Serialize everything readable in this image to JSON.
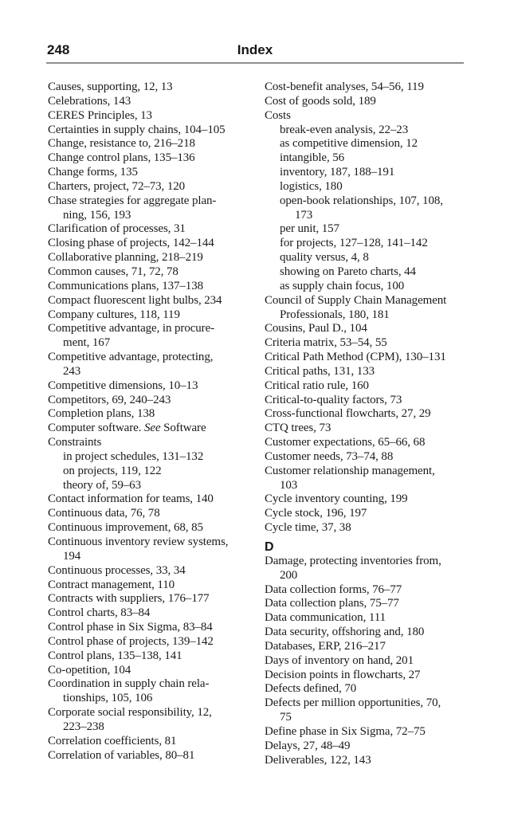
{
  "page": {
    "number": "248",
    "title": "Index"
  },
  "index": {
    "left_column": [
      {
        "t": "Causes, supporting, 12, 13"
      },
      {
        "t": "Celebrations, 143"
      },
      {
        "t": "CERES Principles, 13"
      },
      {
        "t": "Certainties in supply chains, 104–105"
      },
      {
        "t": "Change, resistance to, 216–218"
      },
      {
        "t": "Change control plans, 135–136"
      },
      {
        "t": "Change forms, 135"
      },
      {
        "t": "Charters, project, 72–73, 120"
      },
      {
        "t": "Chase strategies for aggregate plan-"
      },
      {
        "t": "ning, 156, 193",
        "i": 1
      },
      {
        "t": "Clarification of processes, 31"
      },
      {
        "t": "Closing phase of projects, 142–144"
      },
      {
        "t": "Collaborative planning, 218–219"
      },
      {
        "t": "Common causes, 71, 72, 78"
      },
      {
        "t": "Communications plans, 137–138"
      },
      {
        "t": "Compact fluorescent light bulbs, 234"
      },
      {
        "t": "Company cultures, 118, 119"
      },
      {
        "t": "Competitive advantage, in procure-"
      },
      {
        "t": "ment, 167",
        "i": 1
      },
      {
        "t": "Competitive advantage, protecting,"
      },
      {
        "t": "243",
        "i": 1
      },
      {
        "t": "Competitive dimensions, 10–13"
      },
      {
        "t": "Competitors, 69, 240–243"
      },
      {
        "t": "Completion plans, 138"
      },
      {
        "pre": "Computer software. ",
        "it": "See",
        "post": " Software"
      },
      {
        "t": "Constraints"
      },
      {
        "t": "in project schedules, 131–132",
        "i": 1
      },
      {
        "t": "on projects, 119, 122",
        "i": 1
      },
      {
        "t": "theory of, 59–63",
        "i": 1
      },
      {
        "t": "Contact information for teams, 140"
      },
      {
        "t": "Continuous data, 76, 78"
      },
      {
        "t": "Continuous improvement, 68, 85"
      },
      {
        "t": "Continuous inventory review systems,"
      },
      {
        "t": "194",
        "i": 1
      },
      {
        "t": "Continuous processes, 33, 34"
      },
      {
        "t": "Contract management, 110"
      },
      {
        "t": "Contracts with suppliers, 176–177"
      },
      {
        "t": "Control charts, 83–84"
      },
      {
        "t": "Control phase in Six Sigma, 83–84"
      },
      {
        "t": "Control phase of projects, 139–142"
      },
      {
        "t": "Control plans, 135–138, 141"
      },
      {
        "t": "Co-opetition, 104"
      },
      {
        "t": "Coordination in supply chain rela-"
      },
      {
        "t": "tionships, 105, 106",
        "i": 1
      },
      {
        "t": "Corporate social responsibility, 12,"
      },
      {
        "t": "223–238",
        "i": 1
      },
      {
        "t": "Correlation coefficients, 81"
      },
      {
        "t": "Correlation of variables, 80–81"
      }
    ],
    "right_column": [
      {
        "t": "Cost-benefit analyses, 54–56, 119"
      },
      {
        "t": "Cost of goods sold, 189"
      },
      {
        "t": "Costs"
      },
      {
        "t": "break-even analysis, 22–23",
        "i": 1
      },
      {
        "t": "as competitive dimension, 12",
        "i": 1
      },
      {
        "t": "intangible, 56",
        "i": 1
      },
      {
        "t": "inventory, 187, 188–191",
        "i": 1
      },
      {
        "t": "logistics, 180",
        "i": 1
      },
      {
        "t": "open-book relationships, 107, 108,",
        "i": 1
      },
      {
        "t": "173",
        "i": 2
      },
      {
        "t": "per unit, 157",
        "i": 1
      },
      {
        "t": "for projects, 127–128, 141–142",
        "i": 1
      },
      {
        "t": "quality versus, 4, 8",
        "i": 1
      },
      {
        "t": "showing on Pareto charts, 44",
        "i": 1
      },
      {
        "t": "as supply chain focus, 100",
        "i": 1
      },
      {
        "t": "Council of Supply Chain Management"
      },
      {
        "t": "Professionals, 180, 181",
        "i": 1
      },
      {
        "t": "Cousins, Paul D., 104"
      },
      {
        "t": "Criteria matrix, 53–54, 55"
      },
      {
        "t": "Critical Path Method (CPM), 130–131"
      },
      {
        "t": "Critical paths, 131, 133"
      },
      {
        "t": "Critical ratio rule, 160"
      },
      {
        "t": "Critical-to-quality factors, 73"
      },
      {
        "t": "Cross-functional flowcharts, 27, 29"
      },
      {
        "t": "CTQ trees, 73"
      },
      {
        "t": "Customer expectations, 65–66, 68"
      },
      {
        "t": "Customer needs, 73–74, 88"
      },
      {
        "t": "Customer relationship management,"
      },
      {
        "t": "103",
        "i": 1
      },
      {
        "t": "Cycle inventory counting, 199"
      },
      {
        "t": "Cycle stock, 196, 197"
      },
      {
        "t": "Cycle time, 37, 38"
      },
      {
        "t": "D",
        "k": "h"
      },
      {
        "t": "Damage, protecting inventories from,"
      },
      {
        "t": "200",
        "i": 1
      },
      {
        "t": "Data collection forms, 76–77"
      },
      {
        "t": "Data collection plans, 75–77"
      },
      {
        "t": "Data communication, 111"
      },
      {
        "t": "Data security, offshoring and, 180"
      },
      {
        "t": "Databases, ERP, 216–217"
      },
      {
        "t": "Days of inventory on hand, 201"
      },
      {
        "t": "Decision points in flowcharts, 27"
      },
      {
        "t": "Defects defined, 70"
      },
      {
        "t": "Defects per million opportunities, 70,"
      },
      {
        "t": "75",
        "i": 1
      },
      {
        "t": "Define phase in Six Sigma, 72–75"
      },
      {
        "t": "Delays, 27, 48–49"
      },
      {
        "t": "Deliverables, 122, 143"
      }
    ]
  }
}
